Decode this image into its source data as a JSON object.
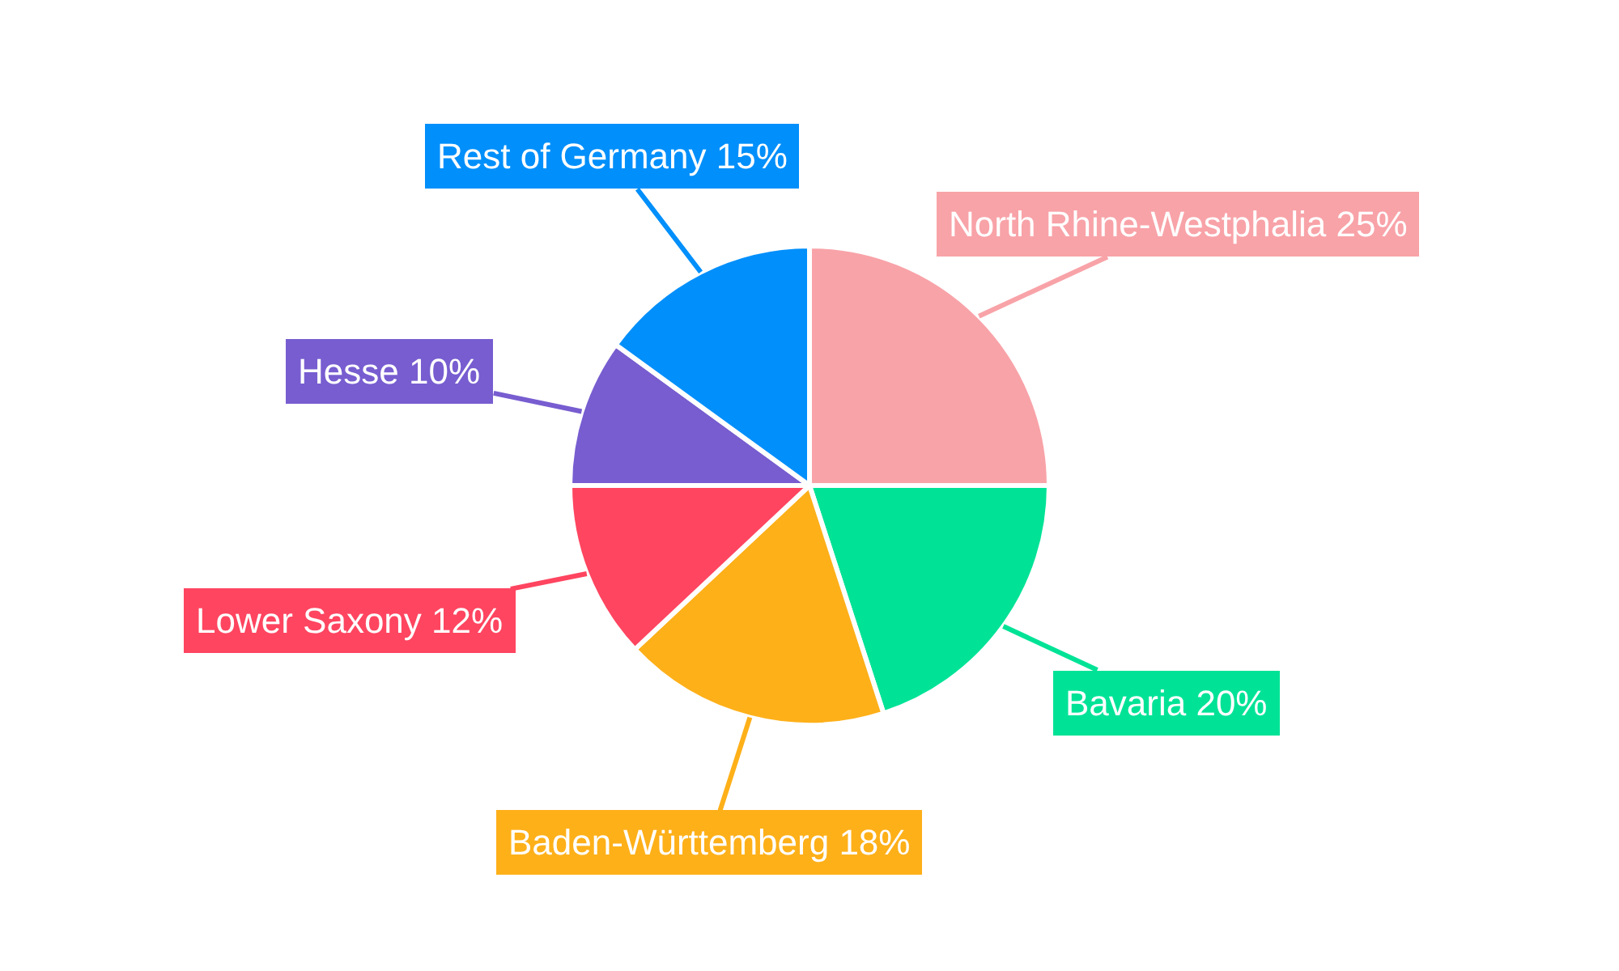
{
  "chart_data": {
    "type": "pie",
    "categories": [
      "North Rhine-Westphalia",
      "Bavaria",
      "Baden-Württemberg",
      "Lower Saxony",
      "Hesse",
      "Rest of Germany"
    ],
    "values": [
      25,
      20,
      18,
      12,
      10,
      15
    ],
    "colors": [
      "#f8a3a8",
      "#00e396",
      "#feb019",
      "#ff4560",
      "#775dd0",
      "#008ffb"
    ],
    "value_labels": [
      "25%",
      "20%",
      "18%",
      "12%",
      "10%",
      "15%"
    ],
    "legend": false
  }
}
